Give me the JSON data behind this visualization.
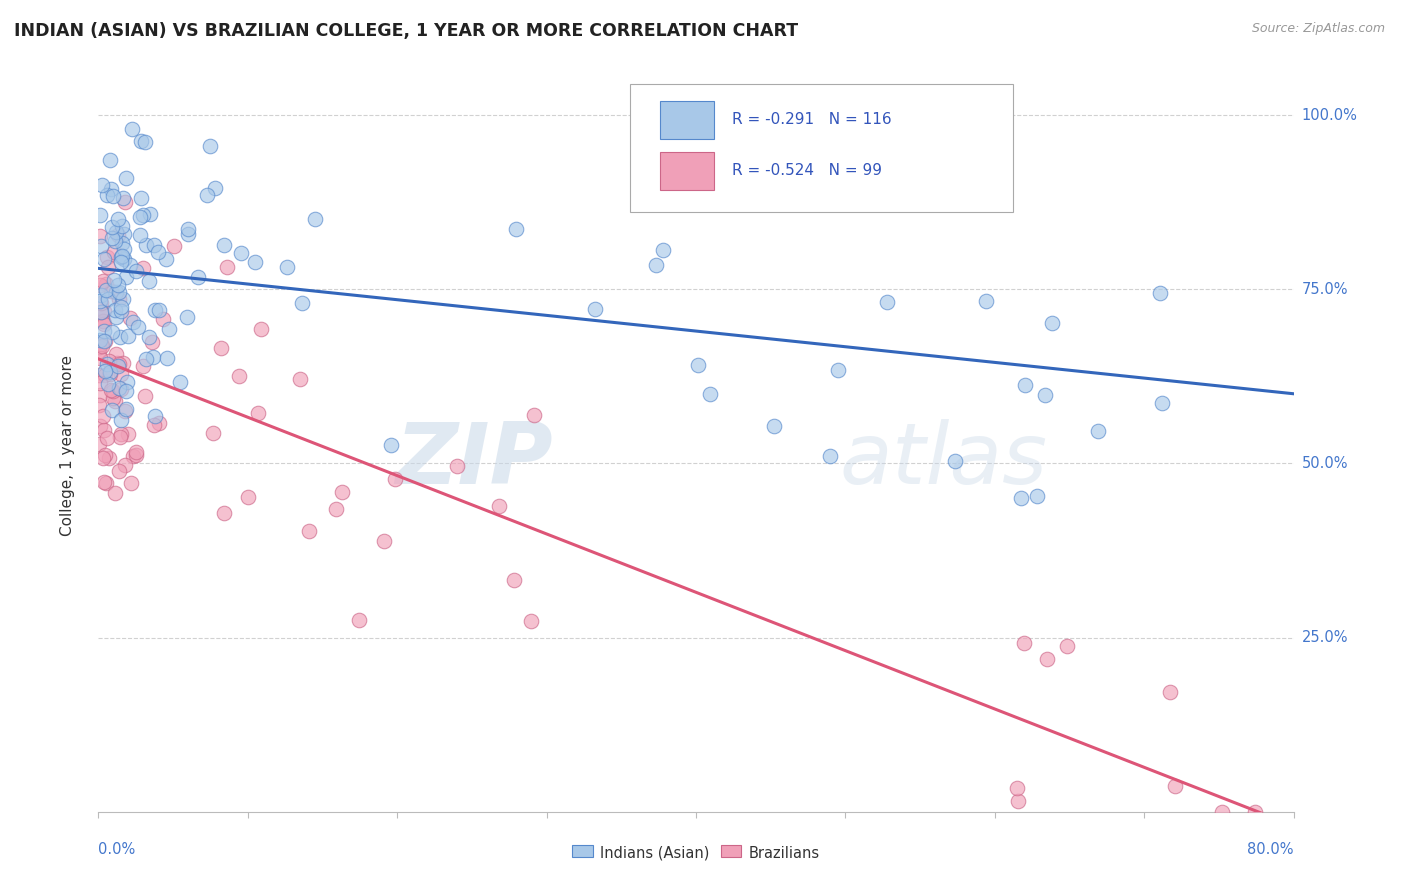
{
  "title": "INDIAN (ASIAN) VS BRAZILIAN COLLEGE, 1 YEAR OR MORE CORRELATION CHART",
  "source_text": "Source: ZipAtlas.com",
  "ylabel": "College, 1 year or more",
  "legend_labels": [
    "Indians (Asian)",
    "Brazilians"
  ],
  "watermark_zip": "ZIP",
  "watermark_atlas": "atlas",
  "blue_fill": "#a8c8e8",
  "blue_edge": "#5588cc",
  "pink_fill": "#f0a0b8",
  "pink_edge": "#cc6688",
  "blue_line_color": "#3366bb",
  "pink_line_color": "#dd5577",
  "ytick_labels": [
    "100.0%",
    "75.0%",
    "50.0%",
    "25.0%"
  ],
  "ytick_vals": [
    100,
    75,
    50,
    25
  ],
  "R_blue_text": "R = -0.291",
  "N_blue_text": "N = 116",
  "R_pink_text": "R = -0.524",
  "N_pink_text": "N = 99",
  "blue_line_x0": 0,
  "blue_line_y0": 78,
  "blue_line_x1": 80,
  "blue_line_y1": 60,
  "pink_line_x0": 0,
  "pink_line_y0": 65,
  "pink_line_x1": 80,
  "pink_line_y1": -2,
  "xlim": [
    0,
    80
  ],
  "ylim": [
    0,
    105
  ]
}
